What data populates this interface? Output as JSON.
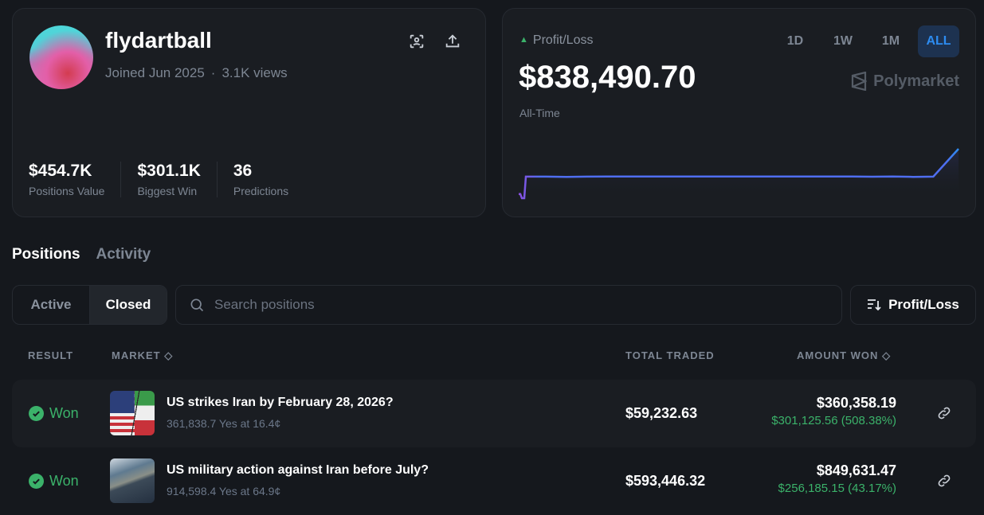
{
  "profile": {
    "username": "flydartball",
    "joined": "Joined Jun 2025",
    "views": "3.1K views",
    "separator": "·",
    "stats": [
      {
        "value": "$454.7K",
        "label": "Positions Value"
      },
      {
        "value": "$301.1K",
        "label": "Biggest Win"
      },
      {
        "value": "36",
        "label": "Predictions"
      }
    ]
  },
  "pnl": {
    "label": "Profit/Loss",
    "value": "$838,490.70",
    "period": "All-Time",
    "brand": "Polymarket",
    "ranges": [
      "1D",
      "1W",
      "1M",
      "ALL"
    ],
    "active_range": "ALL",
    "up_color": "#3bb26a"
  },
  "chart_data": {
    "type": "area",
    "values": [
      -20000,
      -20000,
      -100000,
      -100000,
      310000,
      310000,
      305000,
      310000,
      312000,
      312000,
      312000,
      312000,
      312000,
      312000,
      312000,
      312000,
      312000,
      312000,
      312000,
      312000,
      312000,
      308000,
      312000,
      305000,
      310000,
      838490.7
    ],
    "colors": {
      "start": "#8b4fe0",
      "end": "#2d8cf0",
      "line": "#4f6ef0"
    }
  },
  "tabs": [
    "Positions",
    "Activity"
  ],
  "filters": {
    "segments": [
      "Active",
      "Closed"
    ],
    "active": "Closed",
    "search_placeholder": "Search positions",
    "sort_label": "Profit/Loss"
  },
  "table": {
    "headers": {
      "result": "RESULT",
      "market": "MARKET",
      "total_traded": "TOTAL TRADED",
      "amount_won": "AMOUNT WON"
    },
    "rows": [
      {
        "result": "Won",
        "title": "US strikes Iran by February 28, 2026?",
        "sub": "361,838.7 Yes at 16.4¢",
        "traded": "$59,232.63",
        "won": "$360,358.19",
        "profit": "$301,125.56 (508.38%)"
      },
      {
        "result": "Won",
        "title": "US military action against Iran before July?",
        "sub": "914,598.4 Yes at 64.9¢",
        "traded": "$593,446.32",
        "won": "$849,631.47",
        "profit": "$256,185.15 (43.17%)"
      }
    ]
  }
}
